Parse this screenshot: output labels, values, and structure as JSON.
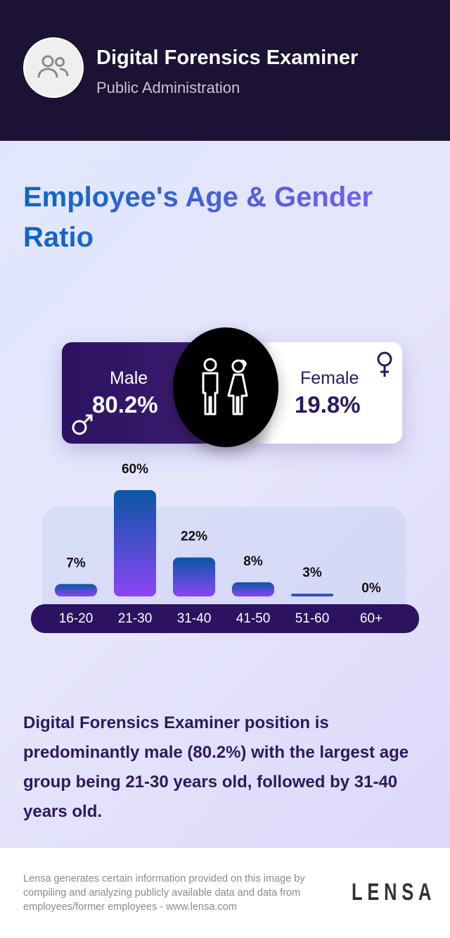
{
  "header": {
    "job_title": "Digital Forensics Examiner",
    "industry": "Public Administration",
    "avatar_icon": "users-icon"
  },
  "title": "Employee's Age & Gender Ratio",
  "gender": {
    "male_label": "Male",
    "male_value": "80.2%",
    "female_label": "Female",
    "female_value": "19.8%",
    "male_color": "#2c1260",
    "female_color": "#ffffff"
  },
  "chart_data": {
    "type": "bar",
    "categories": [
      "16-20",
      "21-30",
      "31-40",
      "41-50",
      "51-60",
      "60+"
    ],
    "values": [
      7,
      60,
      22,
      8,
      3,
      0
    ],
    "labels": [
      "7%",
      "60%",
      "22%",
      "8%",
      "3%",
      "0%"
    ],
    "xlabel": "",
    "ylabel": "",
    "colors": {
      "top": "#0a57a4",
      "bottom": "#8b45f5"
    }
  },
  "summary": "Digital Forensics Examiner position is predominantly male (80.2%) with the largest age group being 21-30 years old, followed by 31-40 years old.",
  "footer": {
    "disclaimer": "Lensa generates certain information provided on this image by compiling and analyzing publicly available data and data from employees/former employees - www.lensa.com",
    "logo": "LENSA"
  }
}
